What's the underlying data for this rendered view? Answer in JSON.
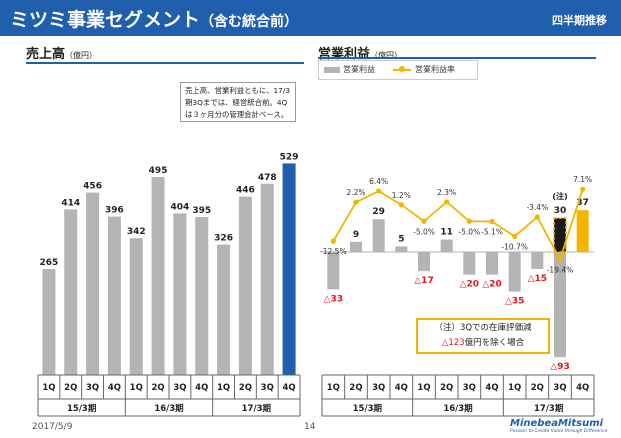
{
  "header": {
    "title": "ミツミ事業セグメント",
    "subtitle": "（含む統合前）",
    "period": "四半期推移"
  },
  "colors": {
    "brand": "#1f5fae",
    "bar_gray": "#b4b4b4",
    "bar_blue": "#1f5fae",
    "bar_yellow": "#f5b400",
    "line": "#f5b400",
    "negative_label": "#e8141a"
  },
  "left": {
    "title": "売上高",
    "unit": "（億円）",
    "note": "売上高、営業利益ともに、17/3期3Qまでは、経営統合前。4Qは３ヶ月分の管理会計ベース。"
  },
  "right": {
    "title": "営業利益",
    "unit": "（億円）",
    "legend_bar": "営業利益",
    "legend_line": "営業利益率",
    "note_label": "(注)",
    "note_line1": "（注）3Qでの在庫評価減",
    "note_line2_a": "△123",
    "note_line2_b": "億円を除く場合"
  },
  "chart_data": [
    {
      "type": "bar",
      "title": "売上高（億円）",
      "categories": [
        "1Q",
        "2Q",
        "3Q",
        "4Q",
        "1Q",
        "2Q",
        "3Q",
        "4Q",
        "1Q",
        "2Q",
        "3Q",
        "4Q"
      ],
      "groups": [
        "15/3期",
        "16/3期",
        "17/3期"
      ],
      "values": [
        265,
        414,
        456,
        396,
        342,
        495,
        404,
        395,
        326,
        446,
        478,
        529
      ],
      "value_labels": [
        "265",
        "414",
        "456",
        "396",
        "342",
        "495",
        "404",
        "395",
        "326",
        "446",
        "478",
        "529"
      ],
      "highlight_index": 11,
      "ylim": [
        0,
        560
      ]
    },
    {
      "type": "bar+line",
      "title": "営業利益（億円）",
      "categories": [
        "1Q",
        "2Q",
        "3Q",
        "4Q",
        "1Q",
        "2Q",
        "3Q",
        "4Q",
        "1Q",
        "2Q",
        "3Q",
        "4Q"
      ],
      "groups": [
        "15/3期",
        "16/3期",
        "17/3期"
      ],
      "series": [
        {
          "name": "営業利益",
          "values": [
            -33,
            9,
            29,
            5,
            -17,
            11,
            -20,
            -20,
            -35,
            -15,
            -93,
            37
          ],
          "value_labels": [
            "△33",
            "9",
            "29",
            "5",
            "△17",
            "11",
            "△20",
            "△20",
            "△35",
            "△15",
            "△93",
            "37"
          ]
        },
        {
          "name": "営業利益率",
          "unit": "%",
          "values": [
            -12.5,
            2.2,
            6.4,
            1.2,
            -5.0,
            2.3,
            -5.0,
            -5.1,
            -10.7,
            -3.4,
            -19.4,
            7.1
          ],
          "value_labels": [
            "-12.5%",
            "2.2%",
            "6.4%",
            "1.2%",
            "-5.0%",
            "2.3%",
            "-5.0%",
            "-5.1%",
            "-10.7%",
            "-3.4%",
            "-19.4%",
            "7.1%"
          ]
        }
      ],
      "adjusted_3q_value": 30,
      "adjusted_3q_label": "30"
    }
  ],
  "footer": {
    "date": "2017/5/9",
    "page": "14",
    "company": "MinebeaMitsumi",
    "tagline": "Passion to Create Value through Difference"
  }
}
